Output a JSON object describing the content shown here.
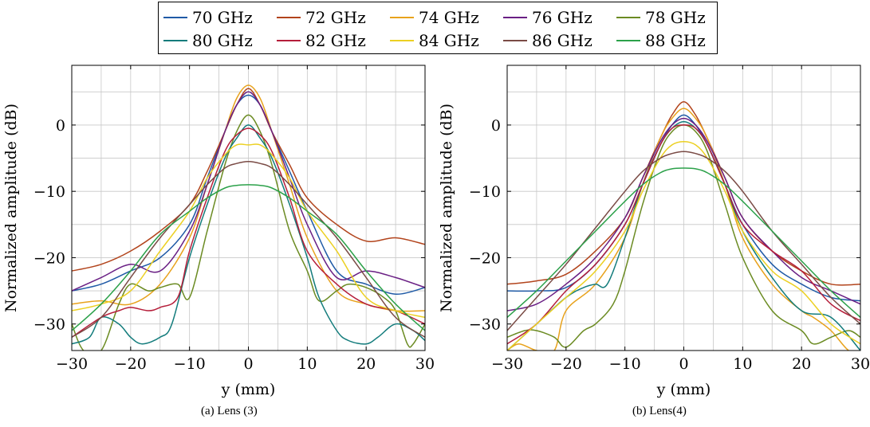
{
  "legend": [
    {
      "name": "70 GHz",
      "color": "#1f5aa6"
    },
    {
      "name": "72 GHz",
      "color": "#b2441c"
    },
    {
      "name": "74 GHz",
      "color": "#e8a21c"
    },
    {
      "name": "76 GHz",
      "color": "#6a1f84"
    },
    {
      "name": "78 GHz",
      "color": "#6b8b22"
    },
    {
      "name": "80 GHz",
      "color": "#137c7c"
    },
    {
      "name": "82 GHz",
      "color": "#b51e3a"
    },
    {
      "name": "84 GHz",
      "color": "#ecd022"
    },
    {
      "name": "86 GHz",
      "color": "#7a4b45"
    },
    {
      "name": "88 GHz",
      "color": "#2ca14a"
    }
  ],
  "chart_data": [
    {
      "type": "line",
      "caption": "(a) Lens (3)",
      "xlabel": "y (mm)",
      "ylabel": "Normalized amplitude (dB)",
      "xlim": [
        -30,
        30
      ],
      "ylim": [
        -34,
        9
      ],
      "xticks": [
        -30,
        -20,
        -10,
        0,
        10,
        20,
        30
      ],
      "xtick_labels": [
        "−30",
        "−20",
        "−10",
        "0",
        "10",
        "20",
        "30"
      ],
      "yticks": [
        -30,
        -20,
        -10,
        0
      ],
      "ytick_labels": [
        "−30",
        "−20",
        "−10",
        "0"
      ],
      "grid": true,
      "series": [
        {
          "name": "70 GHz",
          "x": [
            -30,
            -25,
            -20,
            -15,
            -10,
            -7,
            -4,
            -2,
            0,
            2,
            4,
            7,
            10,
            15,
            20,
            25,
            30
          ],
          "y": [
            -25,
            -24,
            -22,
            -20,
            -15,
            -8,
            -1,
            3,
            4.5,
            3,
            -1,
            -7,
            -13,
            -22,
            -24,
            -25.5,
            -24.5
          ]
        },
        {
          "name": "72 GHz",
          "x": [
            -30,
            -25,
            -20,
            -15,
            -10,
            -7,
            -4,
            -2,
            0,
            2,
            4,
            7,
            10,
            15,
            20,
            25,
            30
          ],
          "y": [
            -22,
            -21,
            -19,
            -16,
            -12,
            -7,
            -1,
            3,
            5.5,
            3,
            -1,
            -6,
            -11,
            -15,
            -17.5,
            -17,
            -18
          ]
        },
        {
          "name": "74 GHz",
          "x": [
            -30,
            -25,
            -20,
            -15,
            -10,
            -7,
            -4,
            -2,
            0,
            2,
            4,
            7,
            10,
            15,
            20,
            25,
            30
          ],
          "y": [
            -27,
            -26.5,
            -27,
            -24,
            -17,
            -9,
            -1,
            4,
            6,
            4,
            -1,
            -9,
            -17,
            -25,
            -27,
            -28,
            -28
          ]
        },
        {
          "name": "76 GHz",
          "x": [
            -30,
            -25,
            -20,
            -15,
            -10,
            -7,
            -4,
            -2,
            0,
            2,
            4,
            7,
            10,
            15,
            20,
            25,
            30
          ],
          "y": [
            -25,
            -23,
            -21,
            -22,
            -16,
            -9,
            -1,
            3,
            5,
            3,
            -1,
            -8,
            -15,
            -23,
            -22,
            -23,
            -24.5
          ]
        },
        {
          "name": "78 GHz",
          "x": [
            -30,
            -28,
            -25,
            -22,
            -20,
            -17,
            -15,
            -12,
            -10,
            -7,
            -4,
            -2,
            0,
            2,
            4,
            7,
            10,
            12,
            15,
            17,
            20,
            23,
            25,
            27,
            28,
            30
          ],
          "y": [
            -30,
            -34,
            -34,
            -27,
            -24,
            -25,
            -24.5,
            -24,
            -26,
            -16,
            -6,
            -1,
            1.5,
            -1,
            -6,
            -16,
            -22,
            -26.5,
            -25,
            -24,
            -24.5,
            -26,
            -28,
            -33,
            -33,
            -30
          ]
        },
        {
          "name": "80 GHz",
          "x": [
            -30,
            -27,
            -25,
            -22,
            -20,
            -18,
            -15,
            -13,
            -10,
            -7,
            -4,
            -2,
            0,
            2,
            4,
            7,
            10,
            12,
            15,
            17,
            20,
            22,
            25,
            28,
            30
          ],
          "y": [
            -33,
            -32,
            -29,
            -30,
            -32,
            -33,
            -32,
            -30,
            -20,
            -12,
            -5,
            -2,
            0,
            -2,
            -5,
            -12,
            -20,
            -26,
            -31,
            -32.5,
            -33,
            -32,
            -30,
            -31,
            -32.5
          ]
        },
        {
          "name": "82 GHz",
          "x": [
            -30,
            -25,
            -22,
            -20,
            -17,
            -15,
            -12,
            -10,
            -7,
            -4,
            -2,
            0,
            2,
            4,
            7,
            10,
            15,
            20,
            25,
            30
          ],
          "y": [
            -32,
            -29,
            -28,
            -27.5,
            -28,
            -27.5,
            -26,
            -19,
            -11,
            -4,
            -1.5,
            -0.5,
            -1.5,
            -4,
            -11,
            -19,
            -24,
            -27,
            -28,
            -30
          ]
        },
        {
          "name": "84 GHz",
          "x": [
            -30,
            -25,
            -20,
            -15,
            -10,
            -7,
            -4,
            -2,
            0,
            2,
            4,
            7,
            10,
            15,
            20,
            25,
            30
          ],
          "y": [
            -28,
            -27,
            -25,
            -19,
            -13,
            -8,
            -4.5,
            -3,
            -3,
            -3,
            -4.5,
            -8,
            -13,
            -19,
            -26,
            -28,
            -29
          ]
        },
        {
          "name": "86 GHz",
          "x": [
            -30,
            -25,
            -20,
            -15,
            -10,
            -7,
            -4,
            -2,
            0,
            2,
            4,
            7,
            10,
            15,
            20,
            25,
            30
          ],
          "y": [
            -32,
            -29,
            -23,
            -17,
            -12,
            -9,
            -6.5,
            -5.8,
            -5.5,
            -5.8,
            -6.5,
            -9,
            -12,
            -17,
            -23,
            -29,
            -32
          ]
        },
        {
          "name": "88 GHz",
          "x": [
            -30,
            -25,
            -20,
            -15,
            -10,
            -7,
            -4,
            -2,
            0,
            2,
            4,
            7,
            10,
            15,
            20,
            25,
            30
          ],
          "y": [
            -31,
            -27,
            -22,
            -16.5,
            -13,
            -11,
            -9.5,
            -9.1,
            -9,
            -9.1,
            -9.5,
            -11,
            -13,
            -16.5,
            -22,
            -27,
            -31
          ]
        }
      ]
    },
    {
      "type": "line",
      "caption": "(b) Lens(4)",
      "xlabel": "y (mm)",
      "ylabel": "Normalized amplitude (dB)",
      "xlim": [
        -30,
        30
      ],
      "ylim": [
        -34,
        9
      ],
      "xticks": [
        -30,
        -20,
        -10,
        0,
        10,
        20,
        30
      ],
      "xtick_labels": [
        "−30",
        "−20",
        "−10",
        "0",
        "10",
        "20",
        "30"
      ],
      "yticks": [
        -30,
        -20,
        -10,
        0
      ],
      "ytick_labels": [
        "−30",
        "−20",
        "−10",
        "0"
      ],
      "grid": true,
      "series": [
        {
          "name": "70 GHz",
          "x": [
            -30,
            -25,
            -20,
            -15,
            -10,
            -7,
            -4,
            -2,
            0,
            2,
            4,
            7,
            10,
            15,
            20,
            25,
            30
          ],
          "y": [
            -25,
            -25,
            -24.5,
            -21,
            -15,
            -9,
            -3,
            0,
            1.5,
            0,
            -3,
            -9,
            -15,
            -21,
            -24,
            -26,
            -26.5
          ]
        },
        {
          "name": "72 GHz",
          "x": [
            -30,
            -25,
            -20,
            -15,
            -10,
            -7,
            -4,
            -2,
            0,
            2,
            4,
            7,
            10,
            15,
            20,
            25,
            30
          ],
          "y": [
            -24,
            -23.5,
            -22.5,
            -19,
            -14,
            -8,
            -2,
            1.5,
            3.5,
            1.5,
            -2,
            -8,
            -14,
            -19,
            -22,
            -24,
            -24
          ]
        },
        {
          "name": "74 GHz",
          "x": [
            -30,
            -28,
            -25,
            -22,
            -20,
            -15,
            -10,
            -7,
            -4,
            -2,
            0,
            2,
            4,
            7,
            10,
            15,
            20,
            22,
            25,
            28,
            30
          ],
          "y": [
            -34,
            -33,
            -34,
            -34,
            -28,
            -24,
            -17,
            -9,
            -2,
            1,
            2.5,
            1,
            -2,
            -9,
            -17,
            -24,
            -28,
            -29,
            -31,
            -34,
            -34
          ]
        },
        {
          "name": "76 GHz",
          "x": [
            -30,
            -25,
            -20,
            -15,
            -10,
            -7,
            -4,
            -2,
            0,
            2,
            4,
            7,
            10,
            15,
            20,
            25,
            30
          ],
          "y": [
            -28,
            -27,
            -24,
            -20,
            -14,
            -8,
            -2.5,
            0,
            1,
            0,
            -2.5,
            -8,
            -14,
            -19,
            -23,
            -25,
            -27
          ]
        },
        {
          "name": "78 GHz",
          "x": [
            -30,
            -27,
            -25,
            -22,
            -20,
            -17,
            -15,
            -12,
            -10,
            -7,
            -4,
            -2,
            0,
            2,
            4,
            7,
            10,
            15,
            20,
            22,
            25,
            28,
            30
          ],
          "y": [
            -32,
            -31,
            -31,
            -32,
            -33.5,
            -31,
            -30,
            -27,
            -22,
            -12,
            -4,
            -1,
            0,
            -1,
            -4,
            -12,
            -20,
            -28,
            -31,
            -33,
            -32,
            -31,
            -32
          ]
        },
        {
          "name": "80 GHz",
          "x": [
            -30,
            -25,
            -20,
            -17,
            -15,
            -13,
            -10,
            -7,
            -4,
            -2,
            0,
            2,
            4,
            7,
            10,
            15,
            20,
            25,
            30
          ],
          "y": [
            -34,
            -30,
            -26,
            -24.5,
            -24,
            -24,
            -17,
            -9,
            -3,
            -0.5,
            0.5,
            -0.5,
            -3,
            -9,
            -16,
            -23,
            -28,
            -29,
            -34
          ]
        },
        {
          "name": "82 GHz",
          "x": [
            -30,
            -25,
            -20,
            -15,
            -10,
            -7,
            -4,
            -2,
            0,
            2,
            4,
            7,
            10,
            15,
            20,
            25,
            30
          ],
          "y": [
            -33,
            -30,
            -25,
            -21,
            -15,
            -9,
            -3,
            -0.5,
            0,
            -0.5,
            -3,
            -9,
            -15,
            -19,
            -22,
            -27,
            -29.5
          ]
        },
        {
          "name": "84 GHz",
          "x": [
            -30,
            -25,
            -20,
            -15,
            -10,
            -7,
            -4,
            -2,
            0,
            2,
            4,
            7,
            10,
            15,
            20,
            25,
            30
          ],
          "y": [
            -34,
            -30,
            -26,
            -22,
            -16,
            -10,
            -5,
            -3,
            -2.5,
            -3,
            -5,
            -10,
            -16,
            -22,
            -25,
            -30,
            -33
          ]
        },
        {
          "name": "86 GHz",
          "x": [
            -30,
            -25,
            -20,
            -15,
            -10,
            -7,
            -4,
            -2,
            0,
            2,
            4,
            7,
            10,
            15,
            20,
            25,
            30
          ],
          "y": [
            -31,
            -26,
            -21,
            -15.5,
            -10,
            -7,
            -5,
            -4.3,
            -4,
            -4.3,
            -5,
            -7,
            -10,
            -16,
            -21,
            -26,
            -30
          ]
        },
        {
          "name": "88 GHz",
          "x": [
            -30,
            -25,
            -20,
            -15,
            -10,
            -7,
            -4,
            -2,
            0,
            2,
            4,
            7,
            10,
            15,
            20,
            25,
            30
          ],
          "y": [
            -29,
            -25,
            -20.5,
            -16,
            -11.5,
            -9,
            -7.2,
            -6.6,
            -6.5,
            -6.6,
            -7.2,
            -9,
            -11.5,
            -16,
            -20.5,
            -25,
            -29
          ]
        }
      ]
    }
  ]
}
